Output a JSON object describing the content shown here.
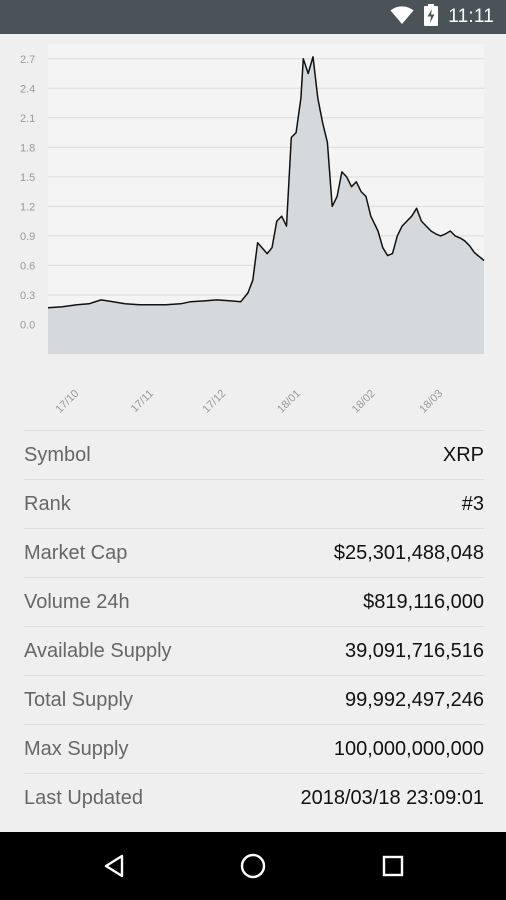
{
  "status_bar": {
    "time": "11:11",
    "icons": [
      "wifi-icon",
      "battery-charging-icon"
    ]
  },
  "chart_data": {
    "type": "area",
    "title": "",
    "xlabel": "",
    "ylabel": "",
    "ylim": [
      -0.3,
      2.85
    ],
    "y_ticks": [
      "0.0",
      "0.3",
      "0.6",
      "0.9",
      "1.2",
      "1.5",
      "1.8",
      "2.1",
      "2.4",
      "2.7"
    ],
    "x_ticks": [
      "17/10",
      "17/11",
      "17/12",
      "18/01",
      "18/02",
      "18/03"
    ],
    "x_tick_dates": [
      "2017-10-01",
      "2017-11-01",
      "2017-12-01",
      "2018-01-01",
      "2018-02-01",
      "2018-03-01"
    ],
    "grid": true,
    "colors": {
      "line": "#111111",
      "fill": "#d5d9db",
      "grid": "#dcdcdc"
    },
    "series": [
      {
        "x": [
          "2017-09-18",
          "2017-09-24",
          "2017-09-30",
          "2017-10-05",
          "2017-10-10",
          "2017-10-15",
          "2017-10-20",
          "2017-10-26",
          "2017-11-01",
          "2017-11-06",
          "2017-11-12",
          "2017-11-16",
          "2017-11-22",
          "2017-11-27",
          "2017-12-03",
          "2017-12-07",
          "2017-12-10",
          "2017-12-12",
          "2017-12-14",
          "2017-12-18",
          "2017-12-20",
          "2017-12-22",
          "2017-12-24",
          "2017-12-26",
          "2017-12-28",
          "2017-12-30",
          "2018-01-01",
          "2018-01-02",
          "2018-01-04",
          "2018-01-06",
          "2018-01-08",
          "2018-01-10",
          "2018-01-12",
          "2018-01-14",
          "2018-01-16",
          "2018-01-18",
          "2018-01-20",
          "2018-01-22",
          "2018-01-24",
          "2018-01-26",
          "2018-01-28",
          "2018-01-30",
          "2018-02-02",
          "2018-02-04",
          "2018-02-06",
          "2018-02-08",
          "2018-02-10",
          "2018-02-12",
          "2018-02-14",
          "2018-02-16",
          "2018-02-18",
          "2018-02-20",
          "2018-02-22",
          "2018-02-24",
          "2018-02-26",
          "2018-02-28",
          "2018-03-02",
          "2018-03-04",
          "2018-03-06",
          "2018-03-08",
          "2018-03-10",
          "2018-03-12",
          "2018-03-14",
          "2018-03-16",
          "2018-03-18"
        ],
        "values": [
          0.17,
          0.18,
          0.2,
          0.21,
          0.25,
          0.23,
          0.21,
          0.2,
          0.2,
          0.2,
          0.21,
          0.23,
          0.24,
          0.25,
          0.24,
          0.23,
          0.32,
          0.45,
          0.83,
          0.72,
          0.78,
          1.05,
          1.1,
          1.0,
          1.9,
          1.95,
          2.3,
          2.7,
          2.55,
          2.72,
          2.3,
          2.05,
          1.85,
          1.2,
          1.3,
          1.55,
          1.5,
          1.4,
          1.45,
          1.35,
          1.3,
          1.1,
          0.95,
          0.78,
          0.7,
          0.72,
          0.9,
          1.0,
          1.05,
          1.1,
          1.18,
          1.05,
          1.0,
          0.95,
          0.92,
          0.9,
          0.92,
          0.95,
          0.9,
          0.88,
          0.85,
          0.8,
          0.73,
          0.69,
          0.65
        ]
      }
    ]
  },
  "details": [
    {
      "label": "Symbol",
      "value": "XRP"
    },
    {
      "label": "Rank",
      "value": "#3"
    },
    {
      "label": "Market Cap",
      "value": "$25,301,488,048"
    },
    {
      "label": "Volume 24h",
      "value": "$819,116,000"
    },
    {
      "label": "Available Supply",
      "value": "39,091,716,516"
    },
    {
      "label": "Total Supply",
      "value": "99,992,497,246"
    },
    {
      "label": "Max Supply",
      "value": "100,000,000,000"
    },
    {
      "label": "Last Updated",
      "value": "2018/03/18 23:09:01"
    }
  ],
  "nav_bar": {
    "buttons": [
      "back-icon",
      "home-icon",
      "recents-icon"
    ]
  }
}
